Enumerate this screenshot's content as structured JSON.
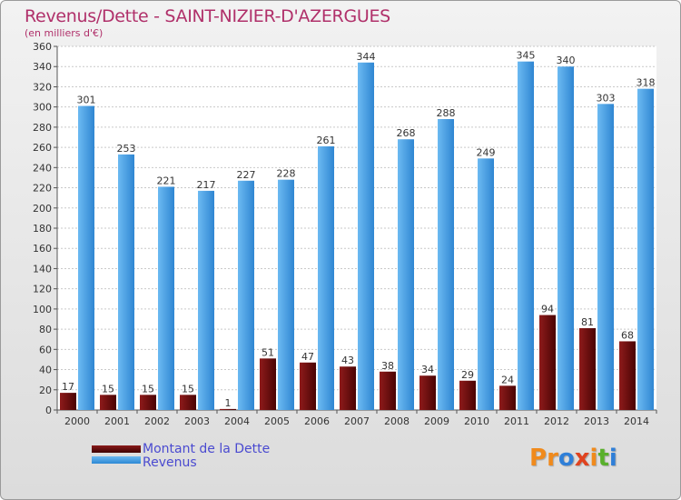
{
  "header": {
    "title": "Revenus/Dette - SAINT-NIZIER-D'AZERGUES",
    "subtitle": "(en milliers d'€)"
  },
  "legend": {
    "dette_label": "Montant de la Dette",
    "revenus_label": "Revenus"
  },
  "logo": {
    "text": "Proxiti"
  },
  "colors": {
    "dette": "#6b0a0a",
    "revenus": "#4aa3e6",
    "grid": "#c8c8c8",
    "title": "#b0306a",
    "legend_text": "#4a4ad0"
  },
  "chart_data": {
    "type": "bar",
    "title": "Revenus/Dette - SAINT-NIZIER-D'AZERGUES",
    "subtitle": "(en milliers d'€)",
    "xlabel": "",
    "ylabel": "",
    "ylim": [
      0,
      360
    ],
    "yticks": [
      0,
      20,
      40,
      60,
      80,
      100,
      120,
      140,
      160,
      180,
      200,
      220,
      240,
      260,
      280,
      300,
      320,
      340,
      360
    ],
    "grid": true,
    "legend_position": "bottom-left",
    "categories": [
      "2000",
      "2001",
      "2002",
      "2003",
      "2004",
      "2005",
      "2006",
      "2007",
      "2008",
      "2009",
      "2010",
      "2011",
      "2012",
      "2013",
      "2014"
    ],
    "series": [
      {
        "name": "Montant de la Dette",
        "values": [
          17,
          15,
          15,
          15,
          1,
          51,
          47,
          43,
          38,
          34,
          29,
          24,
          94,
          81,
          68
        ]
      },
      {
        "name": "Revenus",
        "values": [
          301,
          253,
          221,
          217,
          227,
          228,
          261,
          344,
          268,
          288,
          249,
          345,
          340,
          303,
          318
        ]
      }
    ]
  }
}
